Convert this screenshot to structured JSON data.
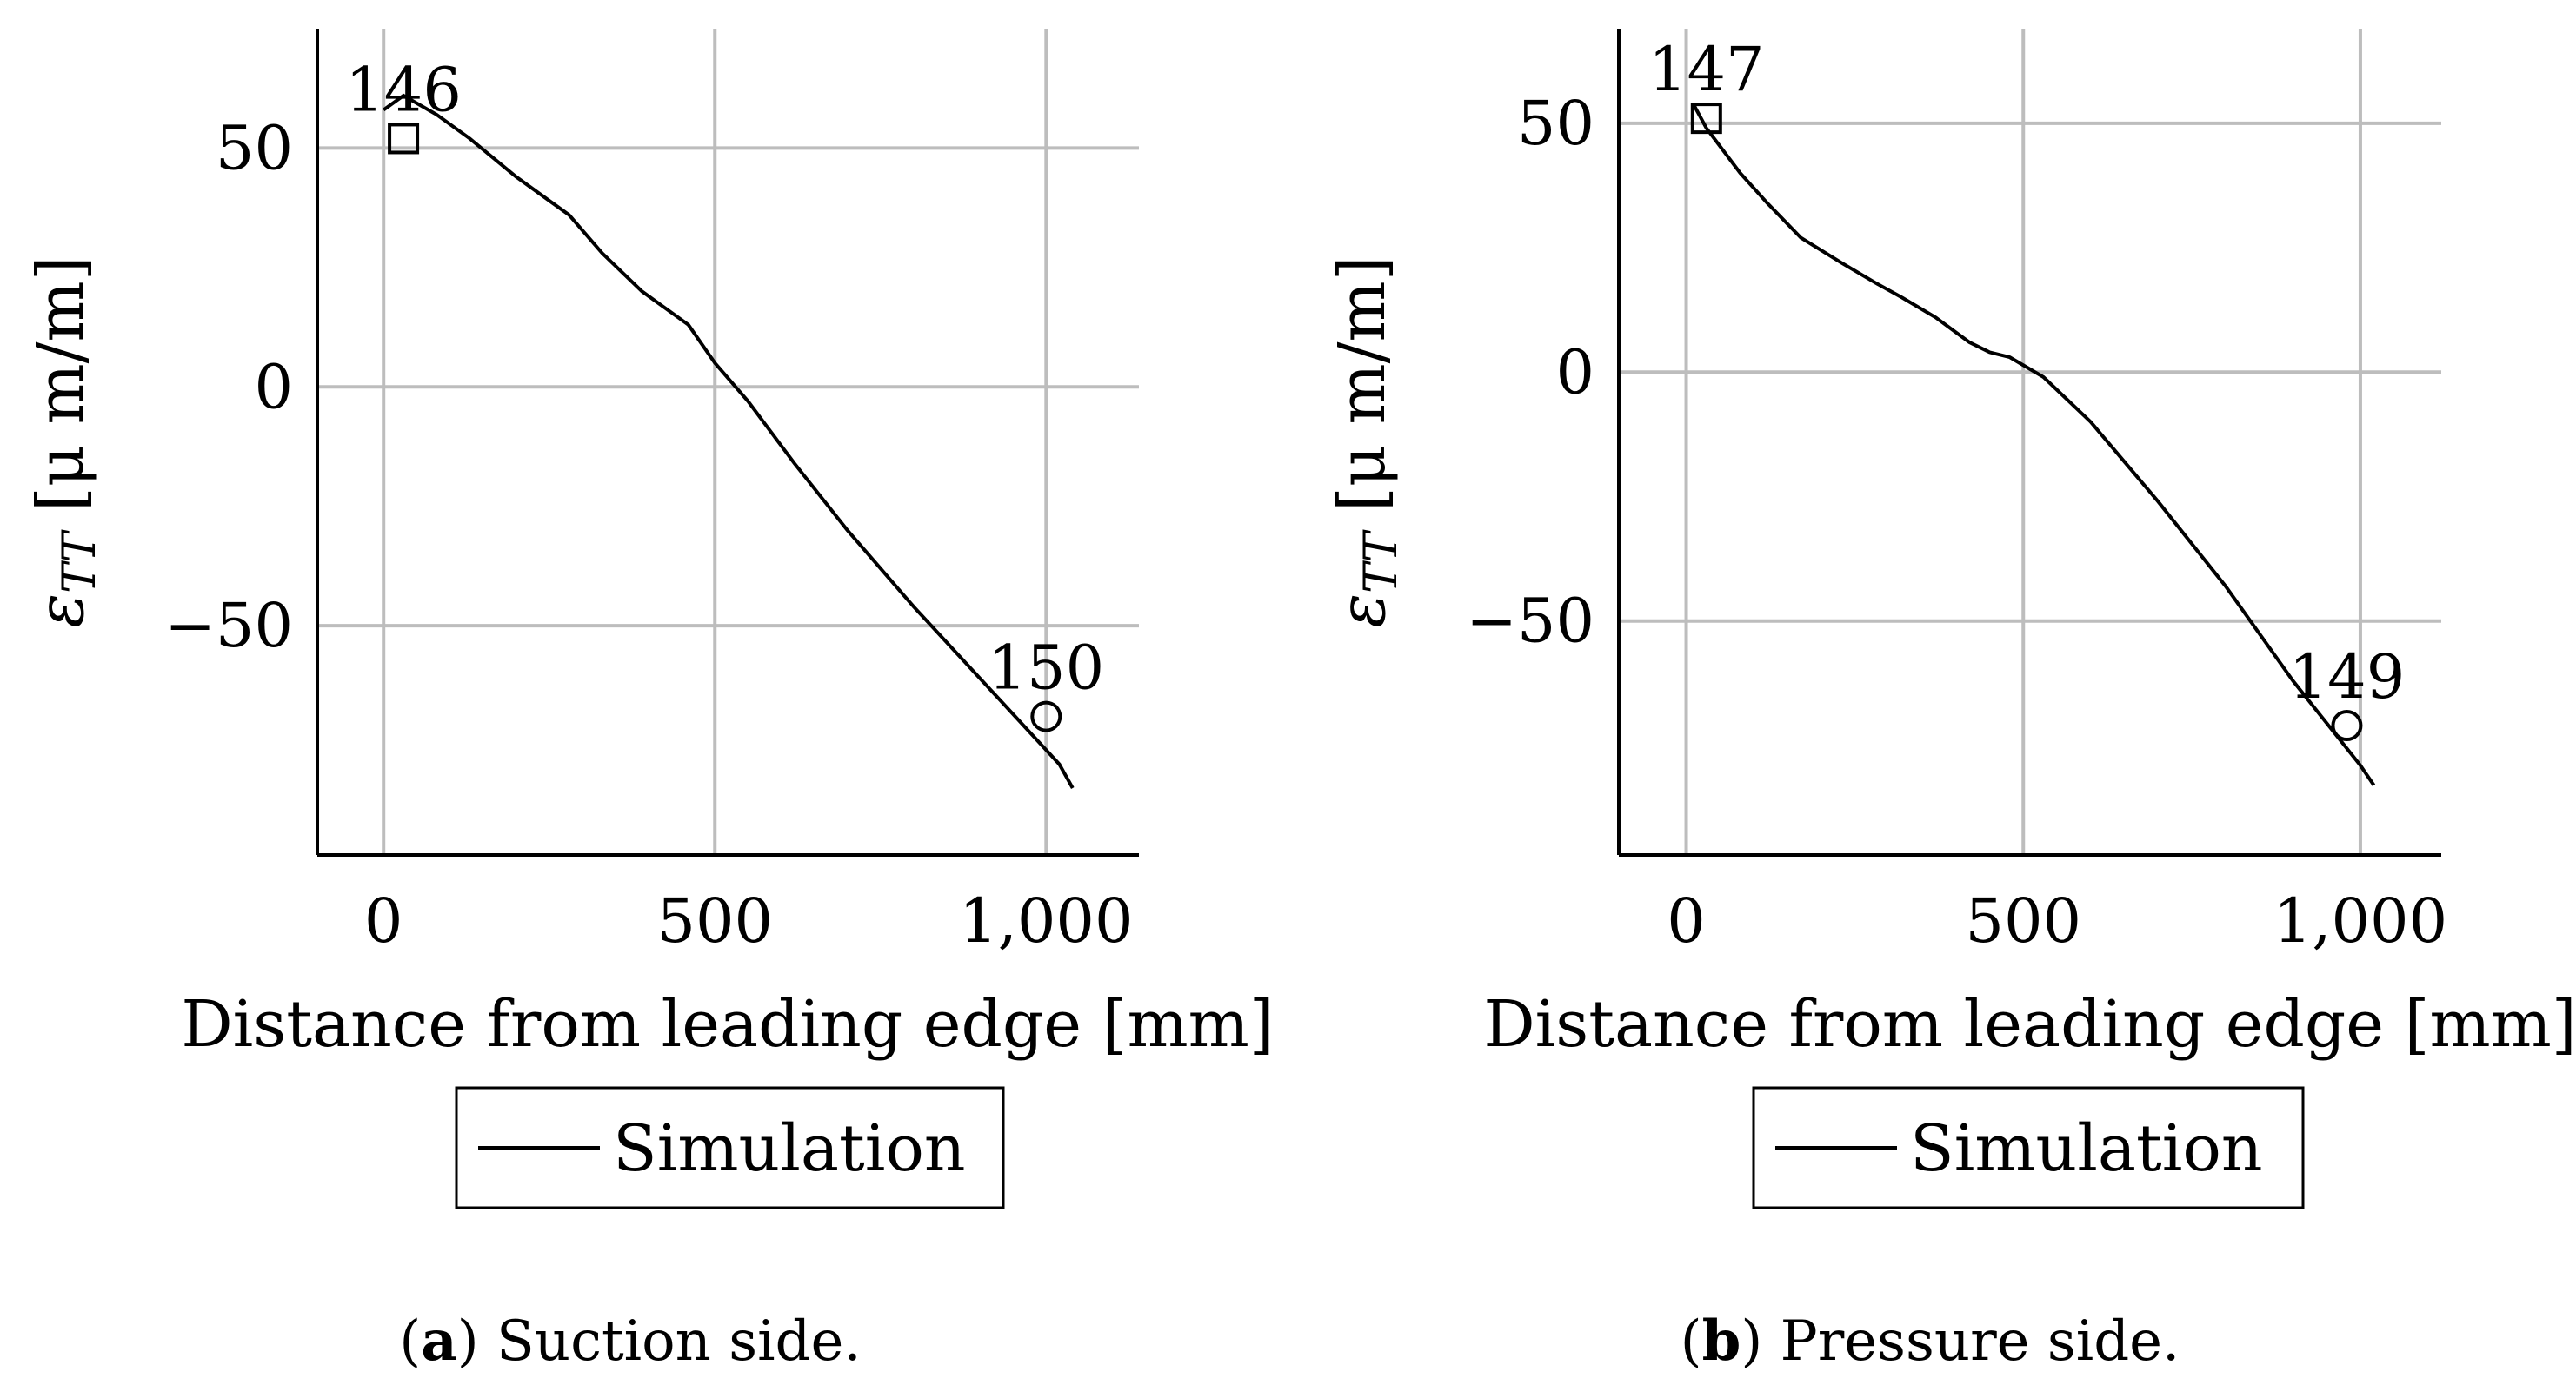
{
  "chart_data": [
    {
      "type": "line",
      "title": "",
      "xlabel": "Distance from leading edge [mm]",
      "ylabel": "ε_TT [μ m/m]",
      "ylabel_main": "ε",
      "ylabel_sub": "TT",
      "ylabel_unit": " [μ m/m]",
      "xlim": [
        -100,
        1140
      ],
      "ylim": [
        -98,
        75
      ],
      "xticks": [
        0,
        500,
        1000
      ],
      "xtick_labels": [
        "0",
        "500",
        "1,000"
      ],
      "yticks": [
        -50,
        0,
        50
      ],
      "ytick_labels": [
        "−50",
        "0",
        "50"
      ],
      "grid": true,
      "legend": [
        "Simulation"
      ],
      "series": [
        {
          "name": "Simulation",
          "x": [
            0,
            30,
            80,
            130,
            200,
            280,
            330,
            390,
            460,
            500,
            550,
            620,
            700,
            800,
            900,
            1000,
            1020,
            1040
          ],
          "y": [
            58,
            61,
            57,
            52,
            44,
            36,
            28,
            20,
            13,
            5,
            -3,
            -16,
            -30,
            -46,
            -61,
            -76,
            -79,
            -84
          ]
        }
      ],
      "annotations": [
        {
          "label": "146",
          "x": 30,
          "y": 52,
          "marker": "square"
        },
        {
          "label": "150",
          "x": 1000,
          "y": -69,
          "marker": "circle"
        }
      ],
      "caption_letter": "a",
      "caption_text": " Suction side."
    },
    {
      "type": "line",
      "title": "",
      "xlabel": "Distance from leading edge [mm]",
      "ylabel": "ε_TT [μ m/m]",
      "ylabel_main": "ε",
      "ylabel_sub": "TT",
      "ylabel_unit": " [μ m/m]",
      "xlim": [
        -100,
        1120
      ],
      "ylim": [
        -97,
        69
      ],
      "xticks": [
        0,
        500,
        1000
      ],
      "xtick_labels": [
        "0",
        "500",
        "1,000"
      ],
      "yticks": [
        -50,
        0,
        50
      ],
      "ytick_labels": [
        "−50",
        "0",
        "50"
      ],
      "grid": true,
      "legend": [
        "Simulation"
      ],
      "series": [
        {
          "name": "Simulation",
          "x": [
            10,
            30,
            80,
            120,
            170,
            230,
            280,
            320,
            370,
            420,
            450,
            480,
            530,
            600,
            700,
            800,
            900,
            1000,
            1020
          ],
          "y": [
            54,
            49,
            40,
            34,
            27,
            22,
            18,
            15,
            11,
            6,
            4,
            3,
            -1,
            -10,
            -26,
            -43,
            -62,
            -79,
            -83
          ]
        }
      ],
      "annotations": [
        {
          "label": "147",
          "x": 30,
          "y": 51,
          "marker": "square"
        },
        {
          "label": "149",
          "x": 980,
          "y": -71,
          "marker": "circle"
        }
      ],
      "caption_letter": "b",
      "caption_text": " Pressure side."
    }
  ]
}
